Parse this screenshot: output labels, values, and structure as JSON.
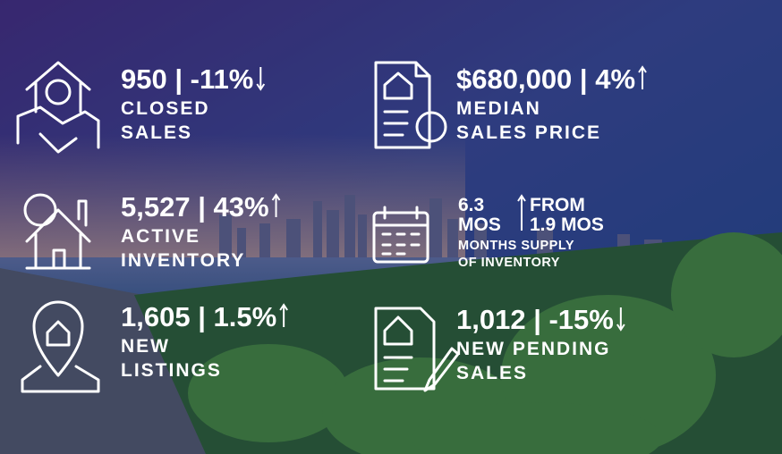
{
  "stats": [
    {
      "headline": "950 | -11%",
      "arrow": "down",
      "label": [
        "CLOSED",
        "SALES"
      ]
    },
    {
      "headline": "$680,000 | 4%",
      "arrow": "up",
      "label": [
        "MEDIAN",
        "SALES PRICE"
      ]
    },
    {
      "headline": "5,527 | 43%",
      "arrow": "up",
      "label": [
        "ACTIVE",
        "INVENTORY"
      ]
    },
    {
      "headline": "1,605 | 1.5%",
      "arrow": "up",
      "label": [
        "NEW",
        "LISTINGS"
      ]
    },
    {
      "headline": "1,012 | -15%",
      "arrow": "down",
      "label": [
        "NEW PENDING",
        "SALES"
      ]
    }
  ],
  "months_supply": {
    "value": [
      "6.3",
      "MOS"
    ],
    "arrow": "up",
    "change": [
      "FROM",
      "1.9 MOS"
    ],
    "label": [
      "MONTHS SUPPLY",
      "OF INVENTORY"
    ]
  }
}
